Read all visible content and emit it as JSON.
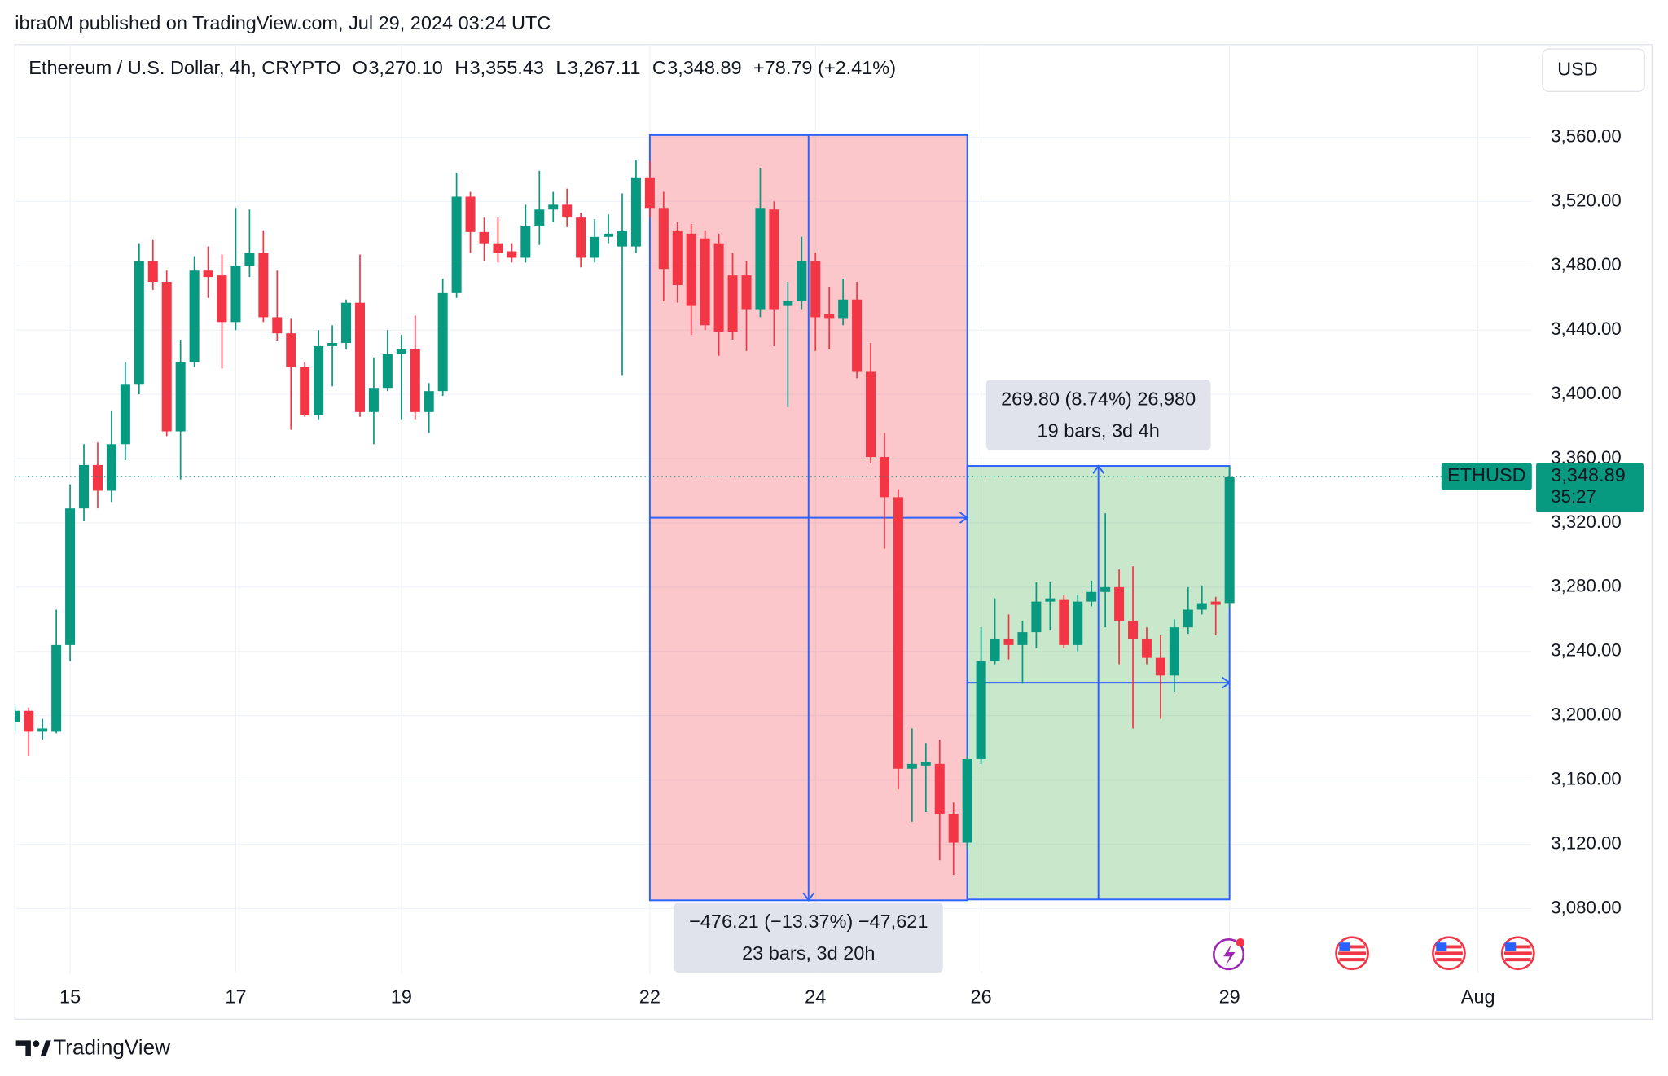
{
  "header": {
    "byline": "ibra0M published on TradingView.com, Jul 29, 2024 03:24 UTC"
  },
  "chart_data": {
    "type": "candlestick",
    "title": "Ethereum / U.S. Dollar, 4h, CRYPTO",
    "legend": [
      {
        "key": "O",
        "value": "3,270.10"
      },
      {
        "key": "H",
        "value": "3,355.43"
      },
      {
        "key": "L",
        "value": "3,267.11"
      },
      {
        "key": "C",
        "value": "3,348.89"
      }
    ],
    "change": "+78.79 (+2.41%)",
    "currency": "USD",
    "up_color": "#089981",
    "down_color": "#f23645",
    "grid": true,
    "categories": [
      null,
      null,
      null,
      null,
      null,
      null,
      null,
      null,
      null,
      null,
      null,
      null,
      null,
      null,
      null,
      null,
      null,
      null,
      null,
      null,
      null,
      null,
      null,
      null,
      null,
      null,
      null,
      null,
      null,
      null,
      null,
      null,
      null,
      null,
      null,
      null,
      null,
      null,
      null,
      null,
      null,
      null,
      null,
      null,
      null,
      null,
      null,
      null,
      null,
      null,
      null,
      null,
      null,
      null,
      null,
      null,
      null,
      null,
      null,
      null,
      null,
      null,
      null,
      null,
      null,
      null,
      null,
      null,
      null,
      null,
      null,
      null,
      null,
      null,
      null,
      null,
      null,
      null,
      null,
      null,
      null,
      null,
      null,
      null,
      null,
      null,
      null,
      null,
      null
    ],
    "open": [
      3196,
      3203,
      3190,
      3190,
      3244,
      3329,
      3356,
      3340,
      3369,
      3406,
      3483,
      3470,
      3377,
      3420,
      3477,
      3474,
      3445,
      3480,
      3488,
      3448,
      3438,
      3417,
      3387,
      3430,
      3432,
      3457,
      3389,
      3404,
      3425,
      3428,
      3389,
      3402,
      3463,
      3523,
      3501,
      3494,
      3489,
      3485,
      3505,
      3515,
      3518,
      3510,
      3485,
      3498,
      3492,
      3492,
      3535,
      3516,
      3502,
      3500,
      3497,
      3494,
      3474,
      3474,
      3453,
      3515,
      3455,
      3458,
      3483,
      3450,
      3447,
      3459,
      3414,
      3361,
      3336,
      3167,
      3169,
      3170,
      3139,
      3121,
      3173,
      3234,
      3248,
      3244,
      3252,
      3271,
      3272,
      3244,
      3271,
      3277,
      3280,
      3259,
      3248,
      3236,
      3225,
      3255,
      3266,
      3271,
      3270.1
    ],
    "high": [
      3206,
      3205,
      3198,
      3266,
      3344,
      3369,
      3370,
      3390,
      3420,
      3494,
      3496,
      3477,
      3434,
      3486,
      3492,
      3487,
      3516,
      3515,
      3502,
      3477,
      3447,
      3420,
      3440,
      3443,
      3459,
      3487,
      3423,
      3440,
      3437,
      3449,
      3407,
      3472,
      3538,
      3526,
      3510,
      3510,
      3494,
      3518,
      3539,
      3526,
      3528,
      3513,
      3509,
      3512,
      3525,
      3546,
      3545,
      3526,
      3507,
      3506,
      3502,
      3500,
      3488,
      3483,
      3541,
      3520,
      3470,
      3498,
      3488,
      3467,
      3472,
      3470,
      3432,
      3376,
      3341,
      3192,
      3183,
      3185,
      3146,
      3175,
      3255,
      3273,
      3263,
      3259,
      3283,
      3283,
      3275,
      3275,
      3284,
      3326,
      3291,
      3293,
      3255,
      3250,
      3260,
      3280,
      3281,
      3274,
      3355.43
    ],
    "low": [
      3190,
      3175,
      3185,
      3189,
      3234,
      3321,
      3329,
      3333,
      3359,
      3400,
      3465,
      3374,
      3347,
      3417,
      3460,
      3416,
      3440,
      3473,
      3445,
      3433,
      3378,
      3386,
      3384,
      3405,
      3428,
      3386,
      3369,
      3402,
      3384,
      3384,
      3376,
      3399,
      3460,
      3488,
      3483,
      3482,
      3482,
      3482,
      3493,
      3507,
      3504,
      3479,
      3482,
      3494,
      3412,
      3488,
      3510,
      3458,
      3457,
      3437,
      3440,
      3424,
      3434,
      3427,
      3448,
      3430,
      3392,
      3453,
      3427,
      3428,
      3443,
      3410,
      3357,
      3304,
      3154,
      3134,
      3140,
      3110,
      3101,
      3117,
      3170,
      3232,
      3235,
      3220,
      3242,
      3253,
      3242,
      3240,
      3268,
      3255,
      3232,
      3192,
      3232,
      3198,
      3215,
      3251,
      3263,
      3250,
      3267.11
    ],
    "close": [
      3203,
      3190,
      3192,
      3244,
      3329,
      3356,
      3340,
      3369,
      3406,
      3483,
      3470,
      3377,
      3420,
      3477,
      3473,
      3445,
      3480,
      3488,
      3448,
      3438,
      3417,
      3387,
      3430,
      3432,
      3457,
      3389,
      3404,
      3425,
      3428,
      3389,
      3402,
      3463,
      3523,
      3501,
      3494,
      3488,
      3485,
      3505,
      3515,
      3518,
      3510,
      3485,
      3498,
      3500,
      3502,
      3535,
      3516,
      3478,
      3468,
      3455,
      3443,
      3439,
      3439,
      3453,
      3516,
      3453,
      3458,
      3483,
      3448,
      3447,
      3459,
      3414,
      3361,
      3336,
      3167,
      3170,
      3171,
      3139,
      3121,
      3173,
      3234,
      3248,
      3244,
      3252,
      3271,
      3273,
      3244,
      3271,
      3277,
      3280,
      3259,
      3248,
      3236,
      3225,
      3255,
      3266,
      3270,
      3269,
      3348.89
    ],
    "xlim": [
      0,
      109.9
    ],
    "xticks": [
      {
        "value": 4,
        "label": "15"
      },
      {
        "value": 16,
        "label": "17"
      },
      {
        "value": 28,
        "label": "19"
      },
      {
        "value": 46,
        "label": "22"
      },
      {
        "value": 58,
        "label": "24"
      },
      {
        "value": 70,
        "label": "26"
      },
      {
        "value": 88,
        "label": "29"
      },
      {
        "value": 106,
        "label": "Aug"
      }
    ],
    "ylim": [
      3039.6,
      3617.6
    ],
    "yticks": [
      {
        "value": 3080,
        "label": "3,080.00"
      },
      {
        "value": 3120,
        "label": "3,120.00"
      },
      {
        "value": 3160,
        "label": "3,160.00"
      },
      {
        "value": 3200,
        "label": "3,200.00"
      },
      {
        "value": 3240,
        "label": "3,240.00"
      },
      {
        "value": 3280,
        "label": "3,280.00"
      },
      {
        "value": 3320,
        "label": "3,320.00"
      },
      {
        "value": 3360,
        "label": "3,360.00"
      },
      {
        "value": 3400,
        "label": "3,400.00"
      },
      {
        "value": 3440,
        "label": "3,440.00"
      },
      {
        "value": 3480,
        "label": "3,480.00"
      },
      {
        "value": 3520,
        "label": "3,520.00"
      },
      {
        "value": 3560,
        "label": "3,560.00"
      }
    ],
    "measures": [
      {
        "start_index": 46,
        "end_index": 69,
        "start_price": 3561.32,
        "end_price": 3085.11,
        "lines": [
          "−476.21 (−13.37%) −47,621",
          "23 bars, 3d 20h"
        ]
      },
      {
        "start_index": 69,
        "end_index": 88,
        "start_price": 3085.63,
        "end_price": 3355.43,
        "lines": [
          "269.80 (8.74%) 26,980",
          "19 bars, 3d 4h"
        ]
      }
    ],
    "last_price": {
      "value": 3348.89,
      "label": "3,348.89"
    },
    "symbol": "ETHUSD",
    "countdown": "35:27"
  },
  "footer": {
    "brand": "TradingView"
  }
}
